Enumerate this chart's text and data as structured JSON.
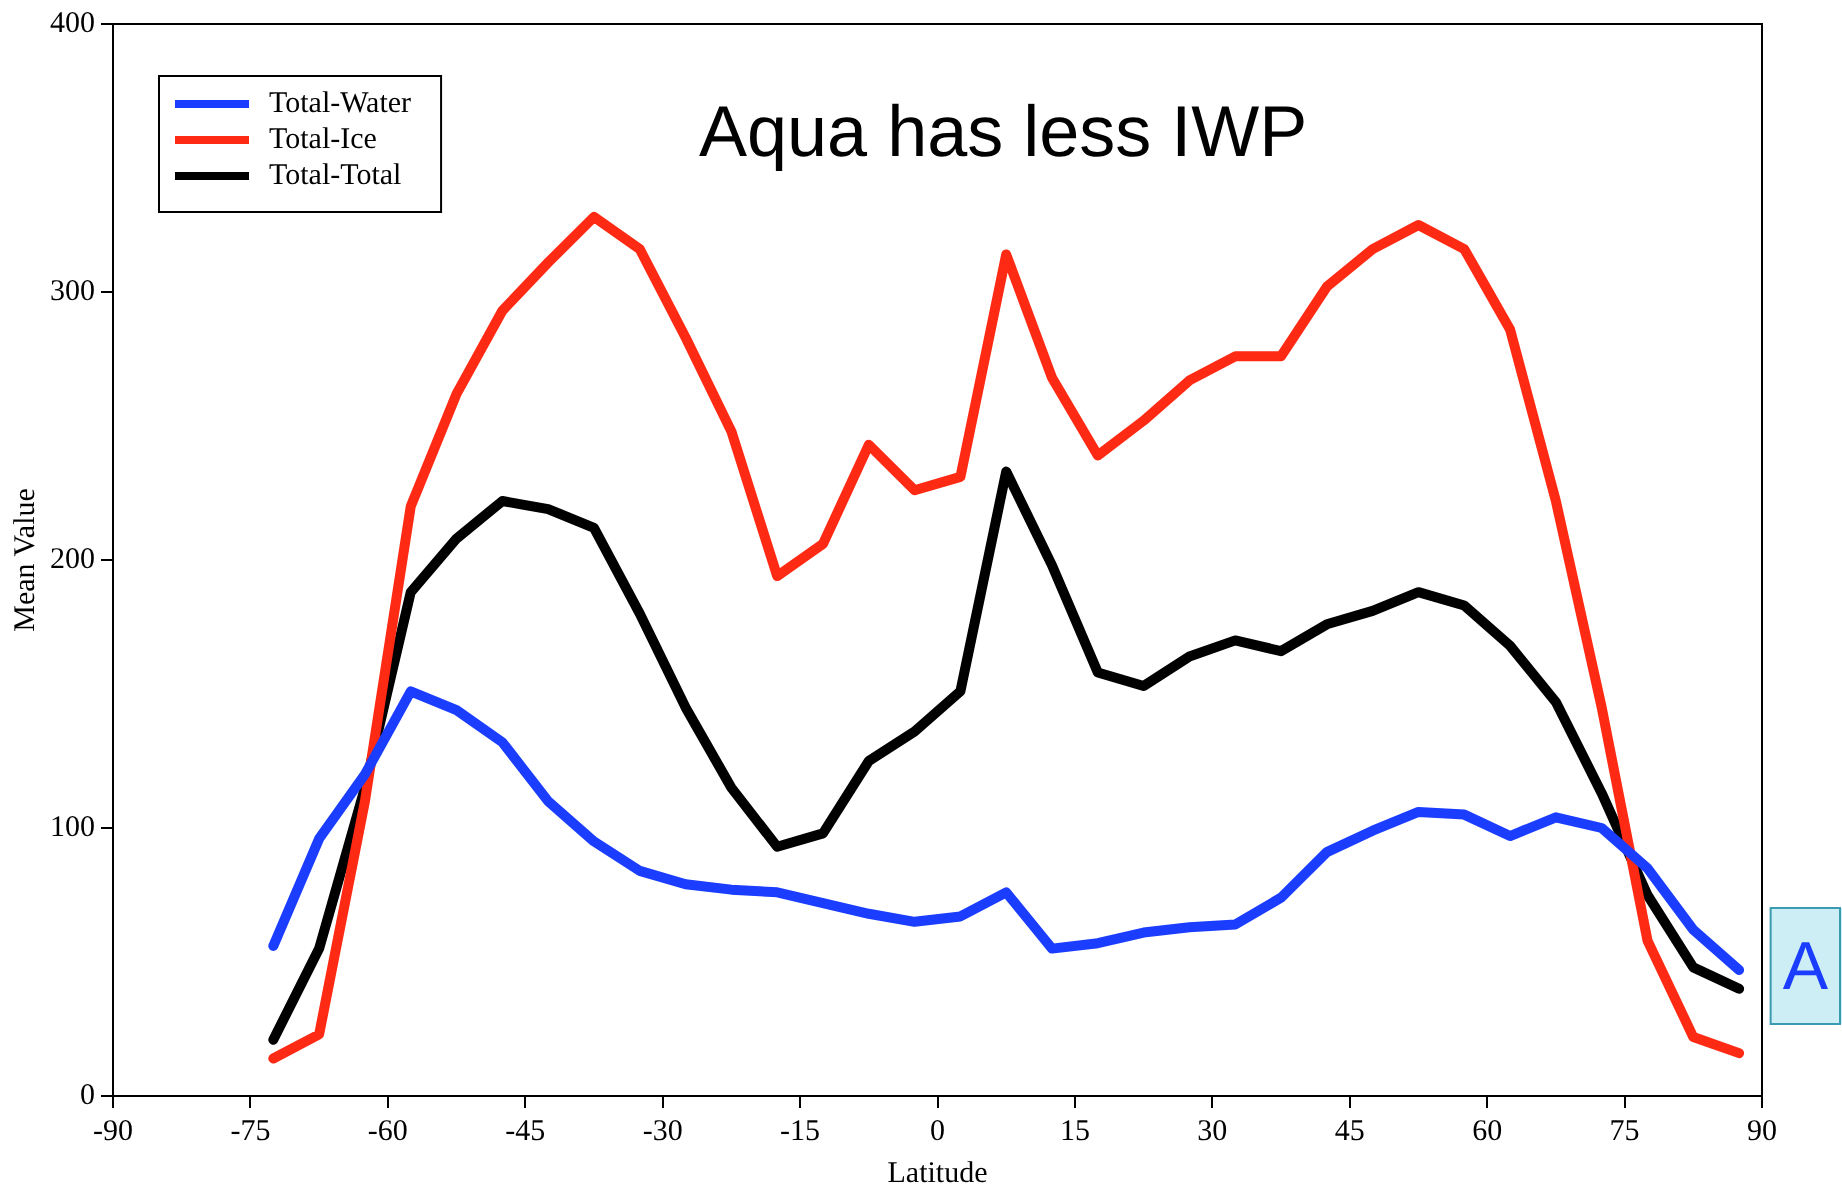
{
  "chart_data": {
    "type": "line",
    "xlabel": "Latitude",
    "ylabel": "Mean Value",
    "x": [
      -72.5,
      -67.5,
      -62.5,
      -57.5,
      -52.5,
      -47.5,
      -42.5,
      -37.5,
      -32.5,
      -27.5,
      -22.5,
      -17.5,
      -12.5,
      -7.5,
      -2.5,
      2.5,
      7.5,
      12.5,
      17.5,
      22.5,
      27.5,
      32.5,
      37.5,
      42.5,
      47.5,
      52.5,
      57.5,
      62.5,
      67.5,
      72.5,
      77.5,
      82.5,
      87.5
    ],
    "series": [
      {
        "name": "Total-Water",
        "color": "#1a3dff",
        "values": [
          56,
          96,
          120,
          151,
          144,
          132,
          110,
          95,
          84,
          79,
          77,
          76,
          72,
          68,
          65,
          67,
          76,
          55,
          57,
          61,
          63,
          64,
          74,
          91,
          99,
          106,
          105,
          97,
          104,
          100,
          85,
          62,
          47
        ]
      },
      {
        "name": "Total-Ice",
        "color": "#ff2a14",
        "values": [
          14,
          23,
          110,
          220,
          262,
          293,
          311,
          328,
          316,
          283,
          248,
          194,
          206,
          243,
          226,
          231,
          314,
          268,
          239,
          252,
          267,
          276,
          276,
          302,
          316,
          325,
          316,
          286,
          222,
          145,
          58,
          22,
          16
        ]
      },
      {
        "name": "Total-Total",
        "color": "#000000",
        "values": [
          21,
          55,
          115,
          188,
          208,
          222,
          219,
          212,
          180,
          145,
          115,
          93,
          98,
          125,
          136,
          151,
          233,
          198,
          158,
          153,
          164,
          170,
          166,
          176,
          181,
          188,
          183,
          168,
          147,
          113,
          75,
          48,
          40
        ]
      }
    ],
    "xlim": [
      -90,
      90
    ],
    "xticks": [
      -90,
      -75,
      -60,
      -45,
      -30,
      -15,
      0,
      15,
      30,
      45,
      60,
      75,
      90
    ],
    "ylim": [
      0,
      400
    ],
    "yticks": [
      0,
      100,
      200,
      300,
      400
    ],
    "grid": false,
    "legend": "top left",
    "marker": "none",
    "line_style": "solid",
    "annotations": [
      "Aqua has less IWP",
      "A"
    ]
  }
}
